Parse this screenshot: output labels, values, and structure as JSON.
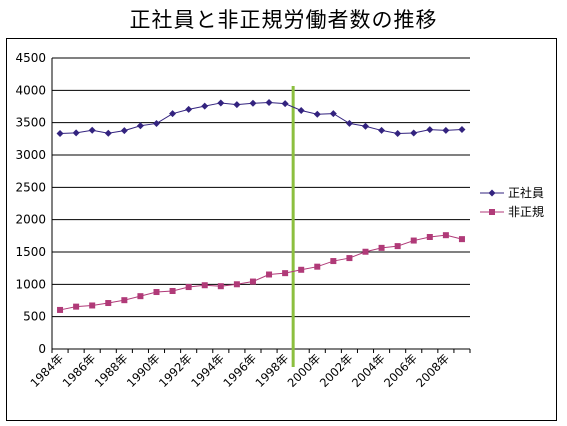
{
  "chart_data": {
    "type": "line",
    "title": "正社員と非正規労働者数の推移",
    "x": [
      1984,
      1985,
      1986,
      1987,
      1988,
      1989,
      1990,
      1991,
      1992,
      1993,
      1994,
      1995,
      1996,
      1997,
      1998,
      1999,
      2000,
      2001,
      2002,
      2003,
      2004,
      2005,
      2006,
      2007,
      2008,
      2009
    ],
    "x_tick_labels": [
      "1984年",
      "1986年",
      "1988年",
      "1990年",
      "1992年",
      "1994年",
      "1996年",
      "1998年",
      "2000年",
      "2002年",
      "2004年",
      "2006年",
      "2008年"
    ],
    "ylim": [
      0,
      4500
    ],
    "y_ticks": [
      0,
      500,
      1000,
      1500,
      2000,
      2500,
      3000,
      3500,
      4000,
      4500
    ],
    "grid": "horizontal",
    "legend_position": "right",
    "reference_line_x": 1998,
    "series": [
      {
        "name": "正社員",
        "color": "#33237f",
        "marker": "diamond",
        "values": [
          3333,
          3343,
          3383,
          3337,
          3377,
          3452,
          3488,
          3639,
          3705,
          3756,
          3805,
          3779,
          3800,
          3812,
          3794,
          3688,
          3630,
          3640,
          3489,
          3444,
          3380,
          3333,
          3340,
          3393,
          3380,
          3394
        ]
      },
      {
        "name": "非正規",
        "color": "#b03a78",
        "marker": "square",
        "values": [
          604,
          655,
          673,
          711,
          755,
          817,
          881,
          897,
          958,
          986,
          971,
          1001,
          1043,
          1152,
          1173,
          1225,
          1273,
          1360,
          1406,
          1504,
          1564,
          1591,
          1677,
          1732,
          1760,
          1699
        ]
      }
    ]
  }
}
